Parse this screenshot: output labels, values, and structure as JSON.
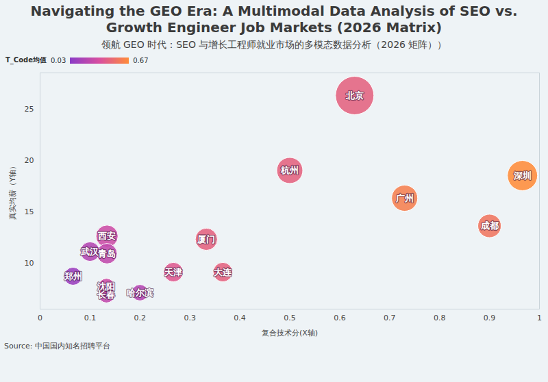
{
  "chart_data": {
    "type": "scatter",
    "title": "Navigating the GEO Era: A Multimodal Data Analysis of SEO vs. Growth Engineer Job Markets (2026 Matrix)",
    "subtitle": "领航 GEO 时代：SEO 与增长工程师就业市场的多模态数据分析（2026 矩阵））",
    "x_label": "复合技术分(X轴)",
    "y_label": "真实均薪（Y轴）",
    "source": "Source: 中国国内知名招聘平台",
    "categories": [
      "北京",
      "杭州",
      "深圳",
      "广州",
      "成都",
      "厦门",
      "西安",
      "武汉",
      "青岛",
      "郑州",
      "天津",
      "大连",
      "沈阳",
      "长春",
      "哈尔滨"
    ],
    "x": [
      0.63,
      0.5,
      0.966,
      0.73,
      0.9,
      0.333,
      0.134,
      0.1,
      0.134,
      0.066,
      0.267,
      0.366,
      0.133,
      0.133,
      0.2
    ],
    "values": [
      26.3,
      19.0,
      18.5,
      16.3,
      13.6,
      12.3,
      12.6,
      11.1,
      10.9,
      8.7,
      9.1,
      9.1,
      7.7,
      6.9,
      7.1
    ],
    "sizes": [
      78,
      36,
      48,
      36,
      29,
      26,
      26,
      20,
      22,
      17,
      20,
      20,
      14,
      14,
      14
    ],
    "color_values": [
      0.45,
      0.45,
      0.67,
      0.6,
      0.55,
      0.45,
      0.3,
      0.2,
      0.25,
      0.1,
      0.4,
      0.45,
      0.3,
      0.25,
      0.2
    ],
    "colorbar_label": "T_Code均值",
    "colorbar_range": [
      0.03,
      0.67
    ],
    "colors": [
      "#8a3bc7",
      "#d84fa0",
      "#ff8c3a"
    ],
    "xlim": [
      0,
      1
    ],
    "xticks": [
      0,
      0.1,
      0.2,
      0.3,
      0.4,
      0.5,
      0.6,
      0.7,
      0.8,
      0.9,
      1
    ],
    "ylim": [
      5.5,
      28.5
    ],
    "yticks": [
      10,
      15,
      20,
      25
    ],
    "grid": false,
    "data_labels": false
  }
}
